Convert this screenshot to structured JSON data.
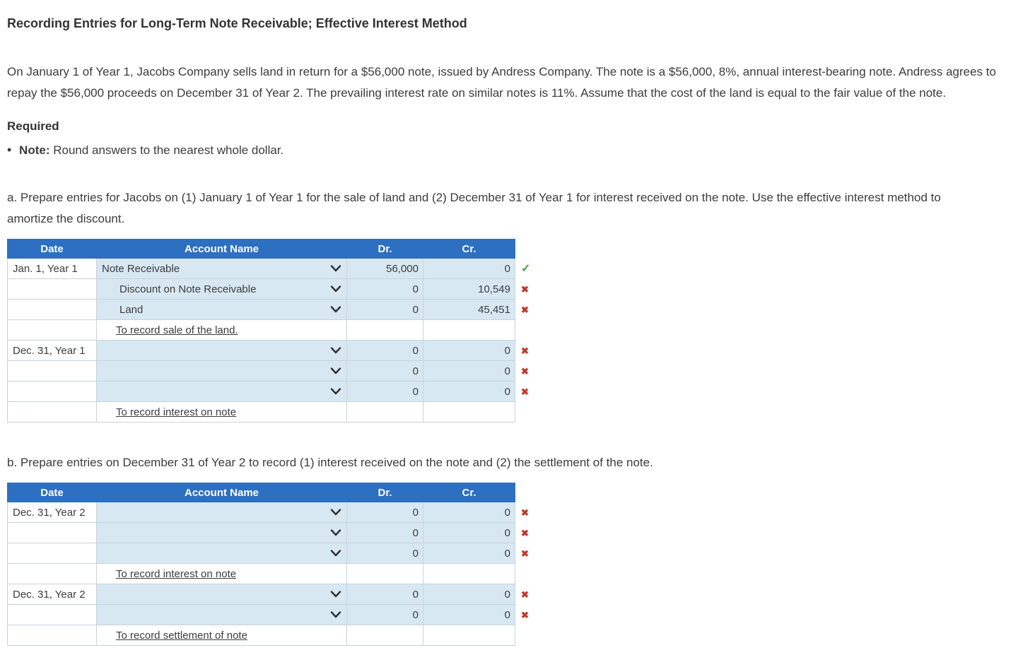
{
  "page": {
    "title": "Recording Entries for Long-Term Note Receivable; Effective Interest Method",
    "intro": "On January 1 of Year 1, Jacobs Company sells land in return for a $56,000 note, issued by Andress Company. The note is a $56,000, 8%, annual interest-bearing note. Andress agrees to repay the $56,000 proceeds on December 31 of Year 2. The prevailing interest rate on similar notes is 11%. Assume that the cost of the land is equal to the fair value of the note.",
    "required_label": "Required",
    "note_bullet": "•",
    "note_label": "Note:",
    "note_text": "Round answers to the nearest whole dollar.",
    "instruction_a": "a. Prepare entries for Jacobs on (1) January 1 of Year 1 for the sale of land and (2) December 31 of Year 1 for interest received on the note. Use the effective interest method to amortize the discount.",
    "instruction_b": "b. Prepare entries on December 31 of Year 2 to record (1) interest received on the note and (2) the settlement of the note."
  },
  "table_headers": {
    "date": "Date",
    "account": "Account Name",
    "dr": "Dr.",
    "cr": "Cr."
  },
  "tables": [
    {
      "name": "journal-table-a",
      "container": "table-a",
      "rows": [
        {
          "type": "entry",
          "date": "Jan. 1, Year 1",
          "account": "Note Receivable",
          "indent": false,
          "dr": "56,000",
          "cr": "0",
          "status": "correct"
        },
        {
          "type": "entry",
          "date": "",
          "account": "Discount on Note Receivable",
          "indent": true,
          "dr": "0",
          "cr": "10,549",
          "status": "incorrect"
        },
        {
          "type": "entry",
          "date": "",
          "account": "Land",
          "indent": true,
          "dr": "0",
          "cr": "45,451",
          "status": "incorrect"
        },
        {
          "type": "memo",
          "date": "",
          "memo": "To record sale of the land."
        },
        {
          "type": "entry",
          "date": "Dec. 31, Year 1",
          "account": "",
          "indent": false,
          "dr": "0",
          "cr": "0",
          "status": "incorrect"
        },
        {
          "type": "entry",
          "date": "",
          "account": "",
          "indent": false,
          "dr": "0",
          "cr": "0",
          "status": "incorrect"
        },
        {
          "type": "entry",
          "date": "",
          "account": "",
          "indent": false,
          "dr": "0",
          "cr": "0",
          "status": "incorrect"
        },
        {
          "type": "memo",
          "date": "",
          "memo": "To record interest on note"
        }
      ]
    },
    {
      "name": "journal-table-b",
      "container": "table-b",
      "rows": [
        {
          "type": "entry",
          "date": "Dec. 31, Year 2",
          "account": "",
          "indent": false,
          "dr": "0",
          "cr": "0",
          "status": "incorrect"
        },
        {
          "type": "entry",
          "date": "",
          "account": "",
          "indent": false,
          "dr": "0",
          "cr": "0",
          "status": "incorrect"
        },
        {
          "type": "entry",
          "date": "",
          "account": "",
          "indent": false,
          "dr": "0",
          "cr": "0",
          "status": "incorrect"
        },
        {
          "type": "memo",
          "date": "",
          "memo": "To record interest on note"
        },
        {
          "type": "entry",
          "date": "Dec. 31, Year 2",
          "account": "",
          "indent": false,
          "dr": "0",
          "cr": "0",
          "status": "incorrect"
        },
        {
          "type": "entry",
          "date": "",
          "account": "",
          "indent": false,
          "dr": "0",
          "cr": "0",
          "status": "incorrect"
        },
        {
          "type": "memo",
          "date": "",
          "memo": "To record settlement of note"
        }
      ]
    }
  ],
  "icons": {
    "correct": "✓",
    "incorrect": "✖",
    "chevron": "chevron-down-icon"
  },
  "colors": {
    "header_bg": "#2D6FC1",
    "filled_cell_bg": "#D8E8F3",
    "correct_green": "#44A248",
    "incorrect_red": "#C0392B"
  }
}
